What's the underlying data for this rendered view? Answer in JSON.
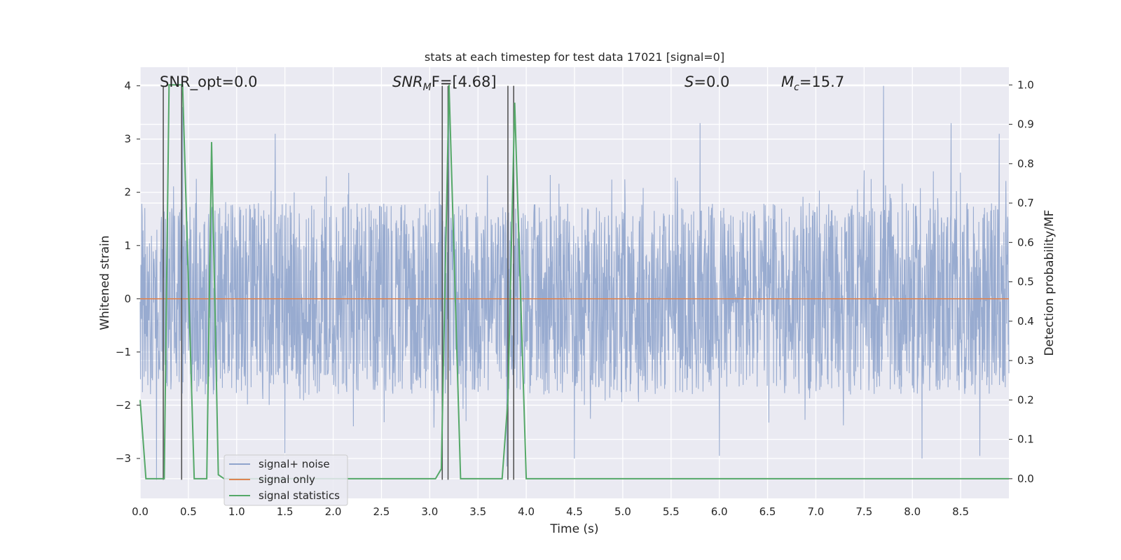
{
  "chart_data": {
    "type": "line",
    "title": "stats at each timestep for test data 17021 [signal=0]",
    "xlabel": "Time (s)",
    "ylabel": "Whitened strain",
    "y2label": "Detection probability/MF",
    "xlim": [
      0.0,
      9.0
    ],
    "ylim": [
      -3.75,
      4.35
    ],
    "y2lim": [
      -0.05,
      1.045
    ],
    "xticks": [
      "0.0",
      "0.5",
      "1.0",
      "1.5",
      "2.0",
      "2.5",
      "3.0",
      "3.5",
      "4.0",
      "4.5",
      "5.0",
      "5.5",
      "6.0",
      "6.5",
      "7.0",
      "7.5",
      "8.0",
      "8.5"
    ],
    "xtick_values": [
      0.0,
      0.5,
      1.0,
      1.5,
      2.0,
      2.5,
      3.0,
      3.5,
      4.0,
      4.5,
      5.0,
      5.5,
      6.0,
      6.5,
      7.0,
      7.5,
      8.0,
      8.5
    ],
    "yticks": [
      "−3",
      "−2",
      "−1",
      "0",
      "1",
      "2",
      "3",
      "4"
    ],
    "ytick_values": [
      -3,
      -2,
      -1,
      0,
      1,
      2,
      3,
      4
    ],
    "y2ticks": [
      "0.0",
      "0.1",
      "0.2",
      "0.3",
      "0.4",
      "0.5",
      "0.6",
      "0.7",
      "0.8",
      "0.9",
      "1.0"
    ],
    "y2tick_values": [
      0.0,
      0.1,
      0.2,
      0.3,
      0.4,
      0.5,
      0.6,
      0.7,
      0.8,
      0.9,
      1.0
    ],
    "grid": true,
    "legend_position": "lower-left",
    "annotations": {
      "snr_opt": "SNR_opt=0.0",
      "snr_mf_main": "SNR",
      "snr_mf_sub": "M",
      "snr_mf_rest": "F=[4.68]",
      "s_main": "S",
      "s_rest": "=0.0",
      "mc_main": "M",
      "mc_sub": "c",
      "mc_rest": "=15.7"
    },
    "series": [
      {
        "name": "signal+ noise",
        "color": "#8fa4cc",
        "noise_amplitude_typical": 1.8,
        "noise_peak_max": 4.0,
        "notable_peaks": [
          [
            0.44,
            3.6
          ],
          [
            3.2,
            3.55
          ],
          [
            5.8,
            3.3
          ],
          [
            7.7,
            4.0
          ],
          [
            8.4,
            3.3
          ],
          [
            1.4,
            3.1
          ],
          [
            8.9,
            3.1
          ]
        ],
        "notable_troughs": [
          [
            1.5,
            -2.9
          ],
          [
            3.8,
            -3.15
          ],
          [
            4.5,
            -3.0
          ],
          [
            6.0,
            -2.95
          ],
          [
            8.1,
            -3.0
          ],
          [
            8.7,
            -2.95
          ],
          [
            0.17,
            -3.4
          ]
        ]
      },
      {
        "name": "signal only",
        "color": "#dd8452",
        "x": [
          0.0,
          9.0
        ],
        "y": [
          0.0,
          0.0
        ]
      },
      {
        "name": "signal statistics",
        "color": "#55a868",
        "axis": "right",
        "x": [
          0.0,
          0.06,
          0.25,
          0.3,
          0.44,
          0.56,
          0.69,
          0.74,
          0.81,
          0.87,
          3.06,
          3.12,
          3.2,
          3.32,
          3.5,
          3.75,
          3.81,
          3.88,
          4.0,
          8.6,
          8.75,
          9.0
        ],
        "y": [
          0.2,
          0.0,
          0.0,
          1.0,
          1.0,
          0.0,
          0.0,
          0.855,
          0.01,
          0.0,
          0.0,
          0.025,
          1.0,
          0.0,
          0.0,
          0.0,
          0.2,
          0.955,
          0.0,
          0.0,
          0.0,
          0.0
        ]
      }
    ],
    "vertical_markers": {
      "color": "#555555",
      "x": [
        0.24,
        0.43,
        3.13,
        3.19,
        3.81,
        3.87
      ],
      "y_range": [
        -3.4,
        4.0
      ]
    }
  },
  "legend": {
    "items": [
      {
        "label": "signal+ noise",
        "color": "#8fa4cc"
      },
      {
        "label": "signal only",
        "color": "#dd8452"
      },
      {
        "label": "signal statistics",
        "color": "#55a868"
      }
    ]
  }
}
